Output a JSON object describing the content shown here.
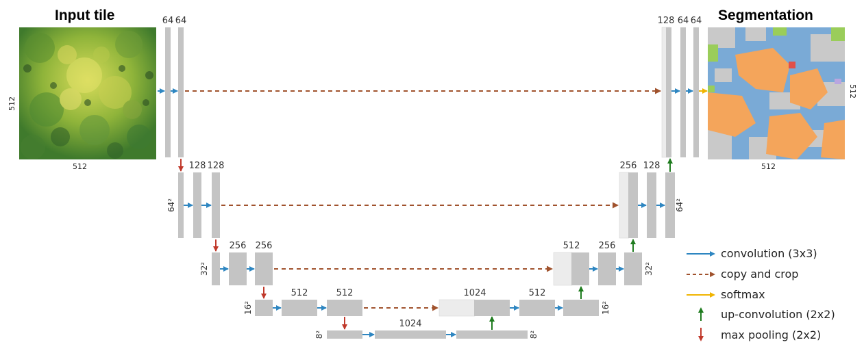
{
  "titles": {
    "input": "Input tile",
    "output": "Segmentation"
  },
  "tile_dims": {
    "input_side": "512",
    "input_bottom": "512",
    "output_side": "512",
    "output_bottom": "512"
  },
  "channel_labels": {
    "enc1a": "64",
    "enc1b": "64",
    "enc2a": "128",
    "enc2b": "128",
    "enc3a": "256",
    "enc3b": "256",
    "enc4a": "512",
    "enc4b": "512",
    "bottleneck": "1024",
    "dec4": "1024",
    "dec4b": "512",
    "dec3": "512",
    "dec3b": "256",
    "dec2": "256",
    "dec2b": "128",
    "dec1": "128",
    "dec1b": "64",
    "dec1c": "64"
  },
  "resolution_labels": {
    "l2_left": "64²",
    "l2_right": "64²",
    "l3_left": "32²",
    "l3_right": "32²",
    "l4_left": "16²",
    "l4_right": "16²",
    "l5_left": "8²",
    "l5_right": "8²"
  },
  "legend": [
    {
      "label": "convolution (3x3)",
      "kind": "solid",
      "color": "#2e86c1"
    },
    {
      "label": "copy and crop",
      "kind": "dashed",
      "color": "#a0522d"
    },
    {
      "label": "softmax",
      "kind": "solid",
      "color": "#f0b400"
    },
    {
      "label": "up-convolution (2x2)",
      "kind": "up",
      "color": "#1e7b1e"
    },
    {
      "label": "max pooling (2x2)",
      "kind": "down",
      "color": "#c0392b"
    }
  ],
  "colors": {
    "block": "#c4c4c4",
    "block_light": "#ececec",
    "conv": "#2e86c1",
    "copy": "#a0522d",
    "softmax": "#f0b400",
    "upconv": "#1e7b1e",
    "pool": "#c0392b"
  }
}
